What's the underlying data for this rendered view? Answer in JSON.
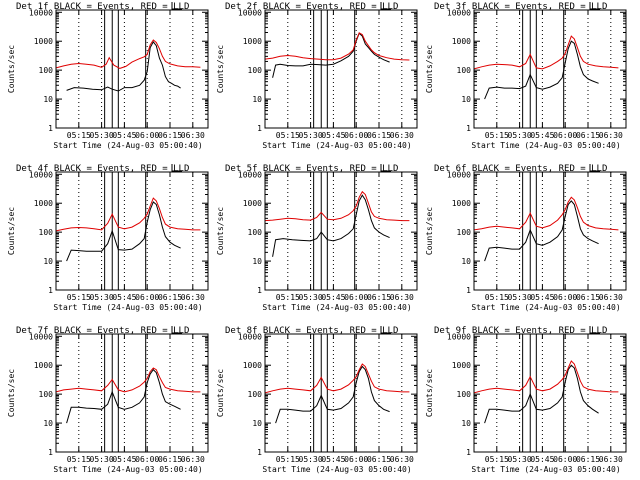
{
  "colors": {
    "events": "#000000",
    "lld": "#e00000",
    "frame": "#000000",
    "background": "#ffffff"
  },
  "axes_common": {
    "ylabel": "Counts/sec",
    "xlabel": "Start Time (24-Aug-03 05:00:40)",
    "yticks": [
      "1",
      "10",
      "100",
      "1000",
      "10000"
    ],
    "ytick_values": [
      1,
      10,
      100,
      1000,
      10000
    ],
    "xticks": [
      "05:15",
      "05:30",
      "05:45",
      "06:00",
      "06:15",
      "06:30"
    ],
    "xtick_minutes": [
      15,
      30,
      45,
      60,
      75,
      90
    ],
    "xlim_minutes": [
      0,
      100
    ],
    "ylim": [
      1,
      12000
    ],
    "dotted_minutes": [
      15,
      30,
      45,
      60,
      75,
      90
    ],
    "solid_minutes": [
      32,
      37,
      41,
      59
    ]
  },
  "chart_data": [
    {
      "type": "line",
      "title": "Det 1f BLACK = Events, RED = LLD",
      "series": [
        {
          "name": "Events",
          "x": [
            7,
            12,
            18,
            24,
            30,
            34,
            37,
            41,
            45,
            50,
            55,
            58,
            60,
            62,
            64,
            66,
            68,
            70,
            72,
            74,
            76,
            78,
            80,
            82
          ],
          "y": [
            20,
            25,
            24,
            22,
            21,
            26,
            22,
            19,
            25,
            25,
            30,
            45,
            90,
            600,
            950,
            700,
            260,
            150,
            60,
            40,
            35,
            30,
            28,
            24
          ]
        },
        {
          "name": "LLD",
          "x": [
            0,
            5,
            10,
            15,
            20,
            25,
            30,
            33,
            35,
            38,
            42,
            46,
            50,
            55,
            58,
            60,
            62,
            64,
            66,
            68,
            70,
            72,
            75,
            80,
            85,
            90,
            95
          ],
          "y": [
            120,
            140,
            160,
            170,
            160,
            150,
            125,
            160,
            270,
            150,
            115,
            135,
            190,
            250,
            290,
            350,
            750,
            1100,
            900,
            550,
            300,
            200,
            165,
            140,
            130,
            130,
            125
          ]
        }
      ]
    },
    {
      "type": "line",
      "title": "Det 2f BLACK = Events, RED = LLD",
      "series": [
        {
          "name": "Events",
          "x": [
            5,
            7,
            10,
            15,
            20,
            25,
            30,
            35,
            40,
            45,
            50,
            55,
            58,
            60,
            62,
            64,
            66,
            68,
            70,
            72,
            75,
            78,
            82
          ],
          "y": [
            55,
            150,
            160,
            145,
            140,
            140,
            160,
            155,
            150,
            160,
            210,
            300,
            450,
            1000,
            1900,
            1500,
            800,
            600,
            450,
            350,
            280,
            230,
            190
          ]
        },
        {
          "name": "LLD",
          "x": [
            0,
            5,
            10,
            15,
            20,
            25,
            30,
            35,
            40,
            45,
            50,
            55,
            58,
            60,
            62,
            64,
            66,
            68,
            70,
            72,
            75,
            80,
            85,
            90,
            95
          ],
          "y": [
            240,
            260,
            300,
            320,
            300,
            270,
            250,
            240,
            230,
            230,
            260,
            360,
            500,
            1100,
            1950,
            1700,
            1000,
            700,
            500,
            400,
            320,
            270,
            240,
            230,
            225
          ]
        }
      ]
    },
    {
      "type": "line",
      "title": "Det 3f BLACK = Events, RED = LLD",
      "series": [
        {
          "name": "Events",
          "x": [
            7,
            10,
            15,
            20,
            25,
            30,
            34,
            37,
            41,
            45,
            50,
            55,
            58,
            60,
            62,
            64,
            66,
            68,
            70,
            72,
            75,
            78,
            82
          ],
          "y": [
            10,
            24,
            26,
            24,
            24,
            23,
            28,
            70,
            25,
            22,
            26,
            35,
            55,
            180,
            550,
            1000,
            850,
            350,
            130,
            70,
            50,
            42,
            35
          ]
        },
        {
          "name": "LLD",
          "x": [
            0,
            5,
            10,
            15,
            20,
            25,
            30,
            34,
            37,
            41,
            45,
            50,
            55,
            58,
            60,
            62,
            64,
            66,
            68,
            70,
            72,
            75,
            80,
            85,
            90,
            95
          ],
          "y": [
            110,
            130,
            150,
            160,
            155,
            150,
            130,
            170,
            350,
            120,
            110,
            140,
            200,
            260,
            380,
            750,
            1500,
            1200,
            600,
            300,
            200,
            160,
            140,
            130,
            125,
            120
          ]
        }
      ]
    },
    {
      "type": "line",
      "title": "Det 4f BLACK = Events, RED = LLD",
      "series": [
        {
          "name": "Events",
          "x": [
            7,
            10,
            15,
            20,
            25,
            30,
            34,
            37,
            41,
            45,
            50,
            55,
            58,
            60,
            62,
            64,
            66,
            68,
            70,
            72,
            75,
            78,
            82
          ],
          "y": [
            10,
            24,
            23,
            22,
            22,
            22,
            40,
            110,
            25,
            24,
            26,
            40,
            60,
            220,
            600,
            1100,
            900,
            400,
            150,
            70,
            45,
            35,
            28
          ]
        },
        {
          "name": "LLD",
          "x": [
            0,
            5,
            10,
            15,
            20,
            25,
            30,
            34,
            37,
            41,
            45,
            50,
            55,
            58,
            60,
            62,
            64,
            66,
            68,
            70,
            72,
            75,
            80,
            85,
            90,
            95
          ],
          "y": [
            110,
            125,
            140,
            145,
            140,
            130,
            120,
            200,
            420,
            150,
            130,
            150,
            210,
            300,
            420,
            800,
            1500,
            1200,
            650,
            320,
            190,
            150,
            130,
            125,
            120,
            120
          ]
        }
      ]
    },
    {
      "type": "line",
      "title": "Det 5f BLACK = Events, RED = LLD",
      "series": [
        {
          "name": "Events",
          "x": [
            5,
            7,
            12,
            18,
            24,
            30,
            34,
            37,
            41,
            45,
            50,
            55,
            58,
            60,
            62,
            64,
            66,
            68,
            70,
            72,
            75,
            78,
            82
          ],
          "y": [
            14,
            55,
            60,
            55,
            52,
            50,
            60,
            100,
            55,
            50,
            60,
            90,
            130,
            400,
            1200,
            1900,
            1300,
            600,
            250,
            140,
            100,
            80,
            65
          ]
        },
        {
          "name": "LLD",
          "x": [
            0,
            5,
            10,
            15,
            20,
            25,
            30,
            34,
            37,
            41,
            45,
            50,
            55,
            58,
            60,
            62,
            64,
            66,
            68,
            70,
            72,
            75,
            80,
            85,
            90,
            95
          ],
          "y": [
            250,
            260,
            280,
            300,
            290,
            270,
            260,
            320,
            480,
            280,
            270,
            300,
            400,
            550,
            800,
            1600,
            2500,
            2000,
            1000,
            500,
            350,
            300,
            270,
            260,
            250,
            250
          ]
        }
      ]
    },
    {
      "type": "line",
      "title": "Det 6f BLACK = Events, RED = LLD",
      "series": [
        {
          "name": "Events",
          "x": [
            7,
            10,
            15,
            20,
            25,
            30,
            34,
            37,
            41,
            45,
            50,
            55,
            58,
            60,
            62,
            64,
            66,
            68,
            70,
            72,
            75,
            78,
            82
          ],
          "y": [
            10,
            28,
            30,
            28,
            26,
            26,
            45,
            120,
            40,
            35,
            45,
            70,
            120,
            350,
            900,
            1200,
            900,
            350,
            130,
            80,
            60,
            50,
            40
          ]
        },
        {
          "name": "LLD",
          "x": [
            0,
            5,
            10,
            15,
            20,
            25,
            30,
            34,
            37,
            41,
            45,
            50,
            55,
            58,
            60,
            62,
            64,
            66,
            68,
            70,
            72,
            75,
            80,
            85,
            90,
            95
          ],
          "y": [
            120,
            130,
            150,
            160,
            150,
            140,
            130,
            220,
            450,
            160,
            140,
            170,
            260,
            400,
            600,
            1100,
            1600,
            1300,
            700,
            350,
            220,
            170,
            140,
            130,
            125,
            120
          ]
        }
      ]
    },
    {
      "type": "line",
      "title": "Det 7f BLACK = Events, RED = LLD",
      "series": [
        {
          "name": "Events",
          "x": [
            7,
            10,
            15,
            20,
            25,
            30,
            34,
            37,
            41,
            45,
            50,
            55,
            58,
            60,
            62,
            64,
            66,
            68,
            70,
            72,
            75,
            78,
            82
          ],
          "y": [
            10,
            35,
            35,
            33,
            32,
            30,
            45,
            120,
            35,
            30,
            35,
            50,
            80,
            250,
            500,
            700,
            550,
            250,
            100,
            55,
            45,
            38,
            30
          ]
        },
        {
          "name": "LLD",
          "x": [
            0,
            5,
            10,
            15,
            20,
            25,
            30,
            34,
            37,
            41,
            45,
            50,
            55,
            58,
            60,
            62,
            64,
            66,
            68,
            70,
            72,
            75,
            80,
            85,
            90,
            95
          ],
          "y": [
            120,
            140,
            150,
            160,
            150,
            140,
            130,
            200,
            320,
            140,
            120,
            140,
            190,
            260,
            350,
            600,
            800,
            700,
            400,
            250,
            170,
            150,
            130,
            125,
            120,
            120
          ]
        }
      ]
    },
    {
      "type": "line",
      "title": "Det 8f BLACK = Events, RED = LLD",
      "series": [
        {
          "name": "Events",
          "x": [
            7,
            10,
            15,
            20,
            25,
            30,
            34,
            37,
            41,
            45,
            50,
            55,
            58,
            60,
            62,
            64,
            66,
            68,
            70,
            72,
            75,
            78,
            82
          ],
          "y": [
            10,
            30,
            30,
            28,
            26,
            26,
            40,
            90,
            30,
            28,
            32,
            50,
            80,
            250,
            600,
            900,
            700,
            350,
            120,
            60,
            40,
            30,
            25
          ]
        },
        {
          "name": "LLD",
          "x": [
            0,
            5,
            10,
            15,
            20,
            25,
            30,
            34,
            37,
            41,
            45,
            50,
            55,
            58,
            60,
            62,
            64,
            66,
            68,
            70,
            72,
            75,
            80,
            85,
            90,
            95
          ],
          "y": [
            110,
            130,
            150,
            160,
            150,
            140,
            130,
            200,
            380,
            150,
            130,
            150,
            210,
            300,
            400,
            700,
            1100,
            900,
            500,
            280,
            180,
            150,
            130,
            125,
            120,
            120
          ]
        }
      ]
    },
    {
      "type": "line",
      "title": "Det 9f BLACK = Events, RED = LLD",
      "series": [
        {
          "name": "Events",
          "x": [
            7,
            10,
            15,
            20,
            25,
            30,
            34,
            37,
            41,
            45,
            50,
            55,
            58,
            60,
            62,
            64,
            66,
            68,
            70,
            72,
            75,
            78,
            82
          ],
          "y": [
            10,
            30,
            30,
            28,
            26,
            26,
            40,
            100,
            30,
            28,
            32,
            50,
            80,
            260,
            700,
            1000,
            800,
            350,
            120,
            60,
            40,
            30,
            22
          ]
        },
        {
          "name": "LLD",
          "x": [
            0,
            5,
            10,
            15,
            20,
            25,
            30,
            34,
            37,
            41,
            45,
            50,
            55,
            58,
            60,
            62,
            64,
            66,
            68,
            70,
            72,
            75,
            80,
            85,
            90,
            95
          ],
          "y": [
            110,
            130,
            150,
            160,
            150,
            140,
            130,
            200,
            400,
            150,
            130,
            150,
            220,
            320,
            450,
            800,
            1400,
            1100,
            550,
            280,
            180,
            150,
            130,
            125,
            120,
            120
          ]
        }
      ]
    }
  ]
}
